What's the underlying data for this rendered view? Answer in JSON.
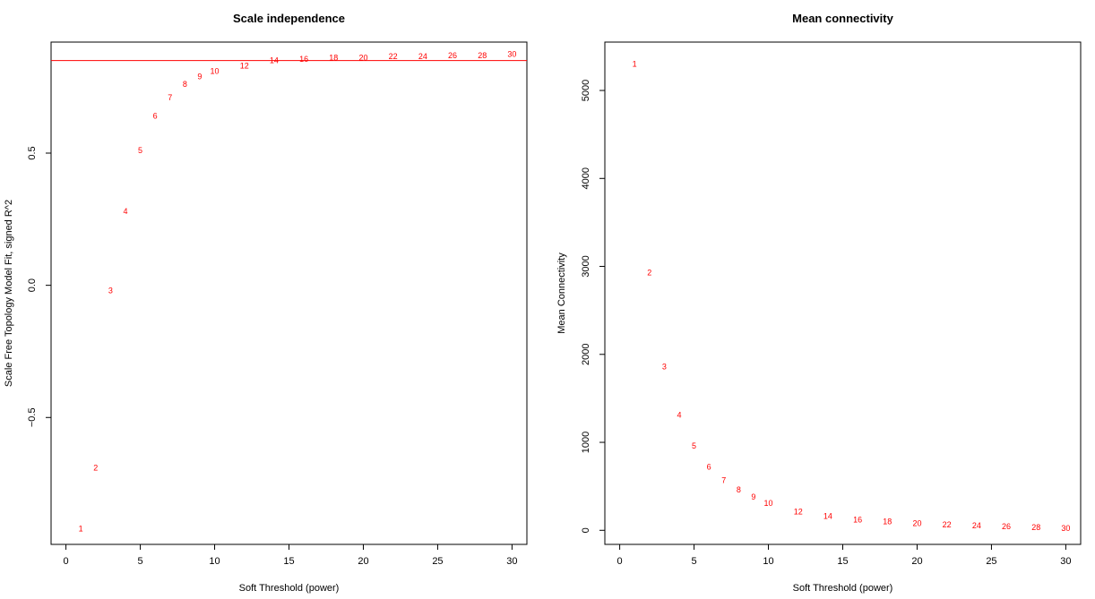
{
  "chart_data": [
    {
      "type": "scatter",
      "title": "Scale independence",
      "xlabel": "Soft Threshold (power)",
      "ylabel": "Scale Free Topology Model Fit, signed R^2",
      "xlim": [
        -1,
        31
      ],
      "ylim": [
        -0.98,
        0.92
      ],
      "xticks": [
        0,
        5,
        10,
        15,
        20,
        25,
        30
      ],
      "yticks": [
        -0.5,
        0.0,
        0.5
      ],
      "ytick_labels": [
        "−0.5",
        "0.0",
        "0.5"
      ],
      "point_color": "#ff0000",
      "hline": 0.85,
      "hline_color": "#ff0000",
      "grid": false,
      "x": [
        1,
        2,
        3,
        4,
        5,
        6,
        7,
        8,
        9,
        10,
        12,
        14,
        16,
        18,
        20,
        22,
        24,
        26,
        28,
        30
      ],
      "y": [
        -0.92,
        -0.69,
        -0.02,
        0.28,
        0.51,
        0.64,
        0.71,
        0.76,
        0.79,
        0.81,
        0.83,
        0.85,
        0.855,
        0.86,
        0.86,
        0.865,
        0.865,
        0.87,
        0.87,
        0.875
      ],
      "labels": [
        "1",
        "2",
        "3",
        "4",
        "5",
        "6",
        "7",
        "8",
        "9",
        "10",
        "12",
        "14",
        "16",
        "18",
        "20",
        "22",
        "24",
        "26",
        "28",
        "30"
      ]
    },
    {
      "type": "scatter",
      "title": "Mean connectivity",
      "xlabel": "Soft Threshold (power)",
      "ylabel": "Mean Connectivity",
      "xlim": [
        -1,
        31
      ],
      "ylim": [
        -160,
        5550
      ],
      "xticks": [
        0,
        5,
        10,
        15,
        20,
        25,
        30
      ],
      "yticks": [
        0,
        1000,
        2000,
        3000,
        4000,
        5000
      ],
      "ytick_labels": [
        "0",
        "1000",
        "2000",
        "3000",
        "4000",
        "5000"
      ],
      "point_color": "#ff0000",
      "grid": false,
      "x": [
        1,
        2,
        3,
        4,
        5,
        6,
        7,
        8,
        9,
        10,
        12,
        14,
        16,
        18,
        20,
        22,
        24,
        26,
        28,
        30
      ],
      "y": [
        5300,
        2930,
        1860,
        1310,
        960,
        720,
        570,
        460,
        380,
        310,
        210,
        160,
        120,
        100,
        80,
        65,
        55,
        45,
        35,
        25
      ],
      "labels": [
        "1",
        "2",
        "3",
        "4",
        "5",
        "6",
        "7",
        "8",
        "9",
        "10",
        "12",
        "14",
        "16",
        "18",
        "20",
        "22",
        "24",
        "26",
        "28",
        "30"
      ]
    }
  ]
}
